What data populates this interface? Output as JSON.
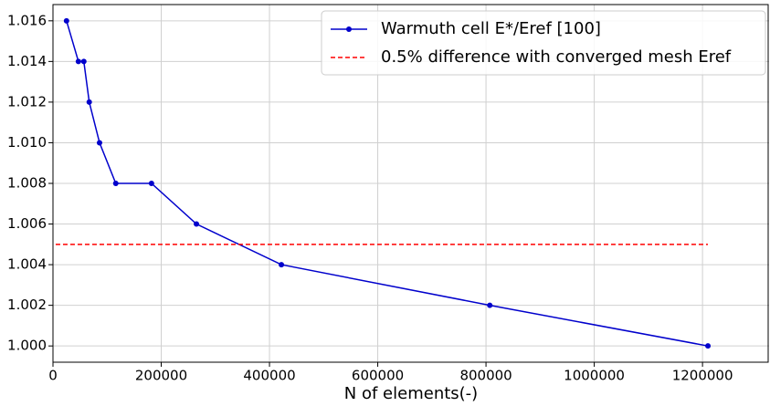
{
  "chart_data": {
    "type": "line",
    "xlabel": "N of elements(-)",
    "x": [
      25000,
      47000,
      57000,
      67000,
      86000,
      116000,
      182000,
      265000,
      422000,
      807000,
      1210000
    ],
    "series": [
      {
        "name": "Warmuth cell E*/Eref [100]",
        "color": "#0000cc",
        "marker": true,
        "dashed": false,
        "x": [
          25000,
          47000,
          57000,
          67000,
          86000,
          116000,
          182000,
          265000,
          422000,
          807000,
          1210000
        ],
        "values": [
          1.016,
          1.014,
          1.014,
          1.012,
          1.01,
          1.008,
          1.008,
          1.006,
          1.004,
          1.002,
          1.0
        ]
      },
      {
        "name": "0.5% difference with converged mesh Eref",
        "color": "#ff0000",
        "marker": false,
        "dashed": true,
        "x": [
          5000,
          1210000
        ],
        "values": [
          1.005,
          1.005
        ]
      }
    ],
    "xlim": [
      0,
      1323000
    ],
    "ylim": [
      0.9992,
      1.0168
    ],
    "xticks": [
      0,
      200000,
      400000,
      600000,
      800000,
      1000000,
      1200000
    ],
    "yticks": [
      {
        "value": 1.0,
        "label": "1.000"
      },
      1.002,
      1.004,
      1.006,
      1.008,
      {
        "value": 1.01,
        "label": "1.010"
      },
      1.012,
      1.014,
      1.016
    ],
    "grid": true,
    "legend": "upper right"
  }
}
